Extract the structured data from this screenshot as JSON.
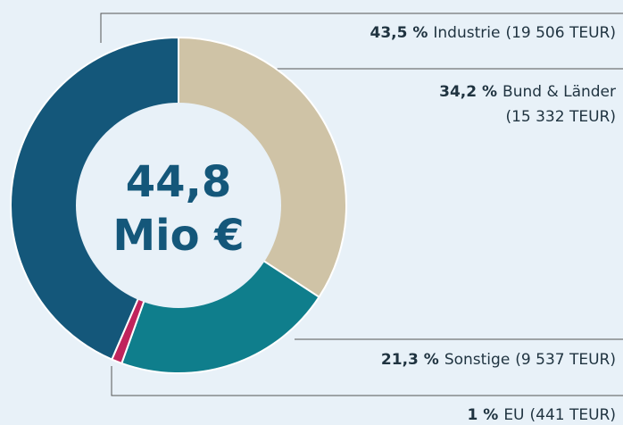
{
  "chart_data": {
    "type": "donut",
    "categories": [
      "Bund & Länder",
      "Sonstige",
      "EU",
      "Industrie"
    ],
    "values": [
      34.2,
      21.3,
      1,
      43.5
    ],
    "value_labels": [
      "34,2 %",
      "21,3 %",
      "1 %",
      "43,5 %"
    ],
    "amounts": [
      15332,
      9537,
      441,
      19506
    ],
    "amount_labels": [
      "(15 332 TEUR)",
      "(9 537 TEUR)",
      "(441 TEUR)",
      "(19 506 TEUR)"
    ],
    "colors": [
      "#cfc3a6",
      "#0f7e8c",
      "#c0245c",
      "#14577a"
    ],
    "total": {
      "value": 44.8,
      "label": "44,8"
    },
    "total_unit": "Mio €"
  }
}
